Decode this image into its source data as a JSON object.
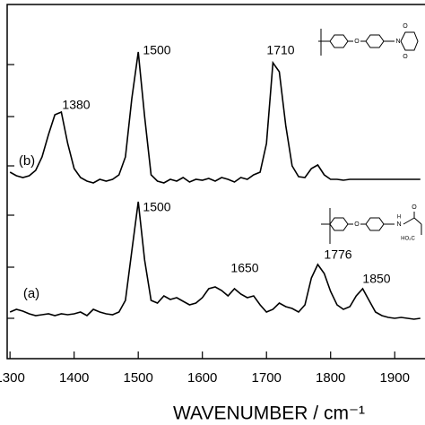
{
  "chart_data": {
    "type": "line",
    "x_label": "WAVENUMBER / cm⁻¹",
    "x": [
      1300,
      1310,
      1320,
      1330,
      1340,
      1350,
      1360,
      1370,
      1380,
      1390,
      1400,
      1410,
      1420,
      1430,
      1440,
      1450,
      1460,
      1470,
      1480,
      1490,
      1500,
      1510,
      1520,
      1530,
      1540,
      1550,
      1560,
      1570,
      1580,
      1590,
      1600,
      1610,
      1620,
      1630,
      1640,
      1650,
      1660,
      1670,
      1680,
      1690,
      1700,
      1710,
      1720,
      1730,
      1740,
      1750,
      1760,
      1770,
      1780,
      1790,
      1800,
      1810,
      1820,
      1830,
      1840,
      1850,
      1860,
      1870,
      1880,
      1890,
      1900,
      1910,
      1920,
      1930,
      1940
    ],
    "series": [
      {
        "name": "(b)",
        "color": "#000000",
        "values": [
          208,
          204,
          202,
          204,
          210,
          225,
          250,
          272,
          275,
          240,
          212,
          202,
          198,
          196,
          200,
          198,
          200,
          205,
          225,
          290,
          342,
          270,
          205,
          198,
          196,
          200,
          198,
          202,
          197,
          200,
          199,
          201,
          198,
          202,
          200,
          197,
          202,
          200,
          205,
          208,
          240,
          330,
          320,
          260,
          215,
          203,
          202,
          212,
          216,
          205,
          200,
          200,
          199,
          200,
          200,
          200,
          200,
          200,
          200,
          200,
          200,
          200,
          200,
          200,
          200
        ]
      },
      {
        "name": "(a)",
        "color": "#000000",
        "values": [
          52,
          55,
          53,
          50,
          48,
          49,
          50,
          48,
          50,
          49,
          50,
          52,
          48,
          55,
          52,
          50,
          49,
          52,
          65,
          120,
          175,
          110,
          65,
          62,
          70,
          66,
          68,
          64,
          60,
          62,
          68,
          78,
          80,
          76,
          70,
          78,
          72,
          68,
          70,
          60,
          52,
          55,
          62,
          58,
          56,
          52,
          60,
          90,
          105,
          95,
          75,
          60,
          55,
          58,
          70,
          78,
          65,
          52,
          48,
          46,
          45,
          46,
          45,
          44,
          45
        ]
      }
    ],
    "annotations": [
      "1380",
      "1500",
      "1710",
      "1500",
      "1650",
      "1776",
      "1850"
    ],
    "structure_labels": [
      "O",
      "N",
      "O",
      "O",
      "O",
      "N",
      "H",
      "O",
      "HO₂C"
    ],
    "xlim": [
      1290,
      1950
    ],
    "xticks": [
      1300,
      1400,
      1500,
      1600,
      1700,
      1800,
      1900
    ],
    "ylim": [
      0,
      395
    ],
    "yticks": [
      45,
      102,
      160,
      215,
      270,
      328
    ]
  }
}
